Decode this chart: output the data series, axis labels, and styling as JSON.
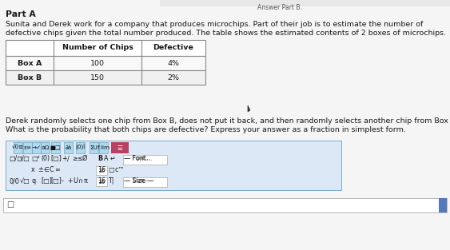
{
  "part_label": "Part A",
  "intro_line1": "Sunita and Derek work for a company that produces microchips. Part of their job is to estimate the number of",
  "intro_line2": "defective chips given the total number produced. The table shows the estimated contents of 2 boxes of microchips.",
  "table_col0_header": "",
  "table_col1_header": "Number of Chips",
  "table_col2_header": "Defective",
  "row1_col0": "Box A",
  "row1_col1": "100",
  "row1_col2": "4%",
  "row2_col0": "Box B",
  "row2_col1": "150",
  "row2_col2": "2%",
  "q_line1": "Derek randomly selects one chip from Box B, does not put it back, and then randomly selects another chip from Box B.",
  "q_line2": "What is the probability that both chips are defective? Express your answer as a fraction in simplest form.",
  "bg_color": "#f5f5f5",
  "text_color": "#1a1a1a",
  "table_line_color": "#888888",
  "toolbar_bg": "#dce8f5",
  "toolbar_border": "#7aaad0",
  "active_btn_bg": "#c05070",
  "input_bg": "#ffffff",
  "input_border": "#aaaaaa",
  "scrollbar_color": "#5577bb",
  "font_size_title": 7.8,
  "font_size_body": 6.8,
  "font_size_table": 6.8,
  "font_size_toolbar": 5.8,
  "top_bar_text": "Answer Part B.",
  "top_bar_color": "#cccccc"
}
